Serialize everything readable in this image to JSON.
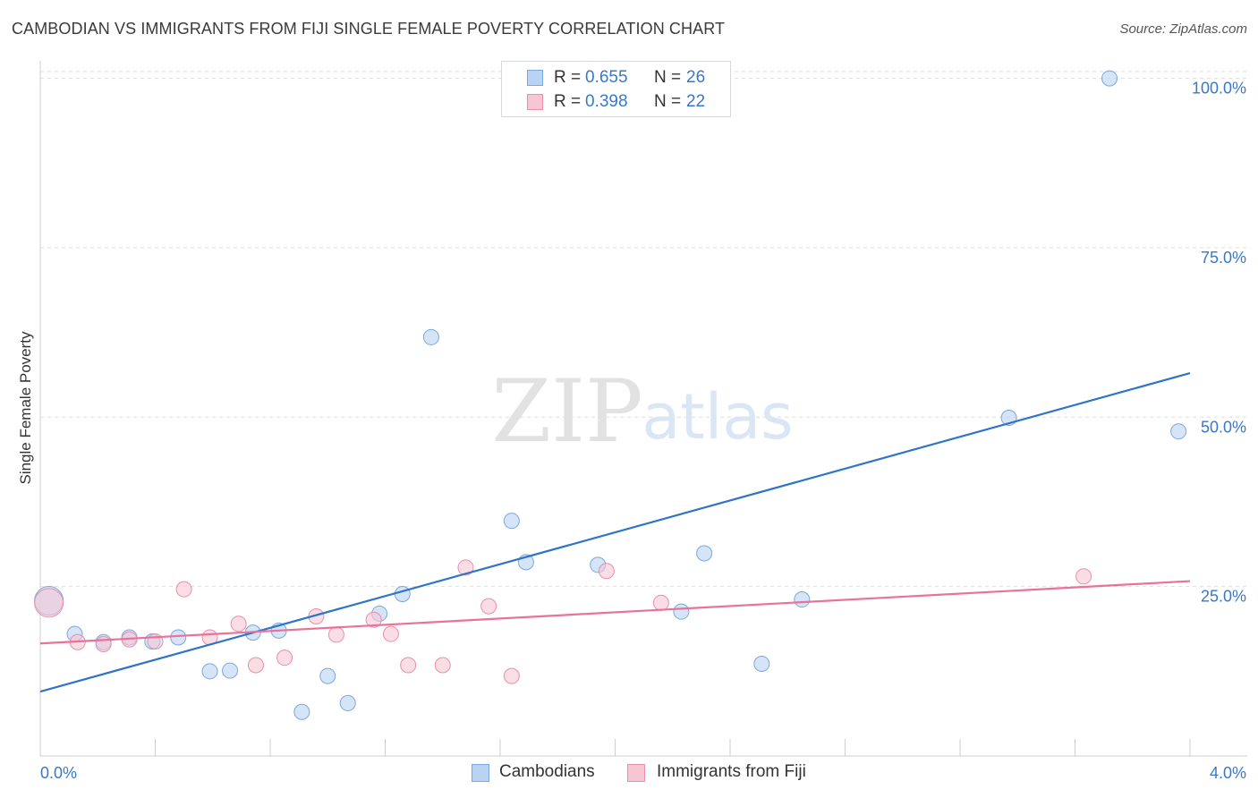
{
  "header": {
    "title": "CAMBODIAN VS IMMIGRANTS FROM FIJI SINGLE FEMALE POVERTY CORRELATION CHART",
    "source": "Source: ZipAtlas.com"
  },
  "watermark": {
    "zip": "ZIP",
    "atlas": "atlas"
  },
  "legend_top": {
    "rows": [
      {
        "r_label": "R =",
        "r_value": "0.655",
        "n_label": "N =",
        "n_value": "26"
      },
      {
        "r_label": "R =",
        "r_value": "0.398",
        "n_label": "N =",
        "n_value": "22"
      }
    ]
  },
  "legend_bottom": {
    "items": [
      "Cambodians",
      "Immigrants from Fiji"
    ]
  },
  "colors": {
    "blue_fill": "#b9d3f2",
    "blue_stroke": "#7aa8dc",
    "blue_line": "#2f74c8",
    "pink_fill": "#f6c6d4",
    "pink_stroke": "#e98fab",
    "pink_line": "#e8729a",
    "tick_label": "#3a78c7",
    "grid": "#dddddd"
  },
  "chart_data": {
    "type": "scatter",
    "title": "CAMBODIAN VS IMMIGRANTS FROM FIJI SINGLE FEMALE POVERTY CORRELATION CHART",
    "xlabel": "",
    "ylabel": "Single Female Poverty",
    "xlim": [
      0,
      4.0
    ],
    "ylim": [
      0,
      101
    ],
    "x_tick_labels": [
      "0.0%",
      "4.0%"
    ],
    "y_ticks": [
      {
        "value": 25,
        "label": "25.0%"
      },
      {
        "value": 50,
        "label": "50.0%"
      },
      {
        "value": 75,
        "label": "75.0%"
      },
      {
        "value": 100,
        "label": "100.0%"
      }
    ],
    "grid": true,
    "series": [
      {
        "name": "Cambodians",
        "r": 0.655,
        "n": 26,
        "trend": {
          "x": [
            0.0,
            4.0
          ],
          "y": [
            9.5,
            56.5
          ]
        },
        "points": [
          {
            "x": 0.03,
            "y": 22.9,
            "big": true
          },
          {
            "x": 0.12,
            "y": 18.0
          },
          {
            "x": 0.22,
            "y": 16.8
          },
          {
            "x": 0.31,
            "y": 17.5
          },
          {
            "x": 0.39,
            "y": 16.9
          },
          {
            "x": 0.48,
            "y": 17.5
          },
          {
            "x": 0.59,
            "y": 12.5
          },
          {
            "x": 0.66,
            "y": 12.6
          },
          {
            "x": 0.74,
            "y": 18.2
          },
          {
            "x": 0.83,
            "y": 18.5
          },
          {
            "x": 0.91,
            "y": 6.5
          },
          {
            "x": 1.0,
            "y": 11.8
          },
          {
            "x": 1.07,
            "y": 7.8
          },
          {
            "x": 1.18,
            "y": 21.0
          },
          {
            "x": 1.26,
            "y": 23.9
          },
          {
            "x": 1.36,
            "y": 61.8
          },
          {
            "x": 1.64,
            "y": 34.7
          },
          {
            "x": 1.69,
            "y": 28.6
          },
          {
            "x": 1.94,
            "y": 28.2
          },
          {
            "x": 2.23,
            "y": 21.3
          },
          {
            "x": 2.31,
            "y": 29.9
          },
          {
            "x": 2.51,
            "y": 13.6
          },
          {
            "x": 2.65,
            "y": 23.1
          },
          {
            "x": 3.37,
            "y": 49.9
          },
          {
            "x": 3.72,
            "y": 100.0
          },
          {
            "x": 3.96,
            "y": 47.9
          }
        ]
      },
      {
        "name": "Immigrants from Fiji",
        "r": 0.398,
        "n": 22,
        "trend": {
          "x": [
            0.0,
            4.0
          ],
          "y": [
            16.6,
            25.8
          ]
        },
        "points": [
          {
            "x": 0.03,
            "y": 22.6,
            "big": true
          },
          {
            "x": 0.13,
            "y": 16.8
          },
          {
            "x": 0.22,
            "y": 16.5
          },
          {
            "x": 0.31,
            "y": 17.2
          },
          {
            "x": 0.4,
            "y": 16.9
          },
          {
            "x": 0.5,
            "y": 24.6
          },
          {
            "x": 0.59,
            "y": 17.5
          },
          {
            "x": 0.69,
            "y": 19.5
          },
          {
            "x": 0.75,
            "y": 13.4
          },
          {
            "x": 0.85,
            "y": 14.5
          },
          {
            "x": 0.96,
            "y": 20.6
          },
          {
            "x": 1.03,
            "y": 17.9
          },
          {
            "x": 1.16,
            "y": 20.1
          },
          {
            "x": 1.22,
            "y": 18.0
          },
          {
            "x": 1.28,
            "y": 13.4
          },
          {
            "x": 1.4,
            "y": 13.4
          },
          {
            "x": 1.48,
            "y": 27.8
          },
          {
            "x": 1.56,
            "y": 22.1
          },
          {
            "x": 1.64,
            "y": 11.8
          },
          {
            "x": 1.97,
            "y": 27.3
          },
          {
            "x": 2.16,
            "y": 22.6
          },
          {
            "x": 3.63,
            "y": 26.5
          }
        ]
      }
    ]
  }
}
